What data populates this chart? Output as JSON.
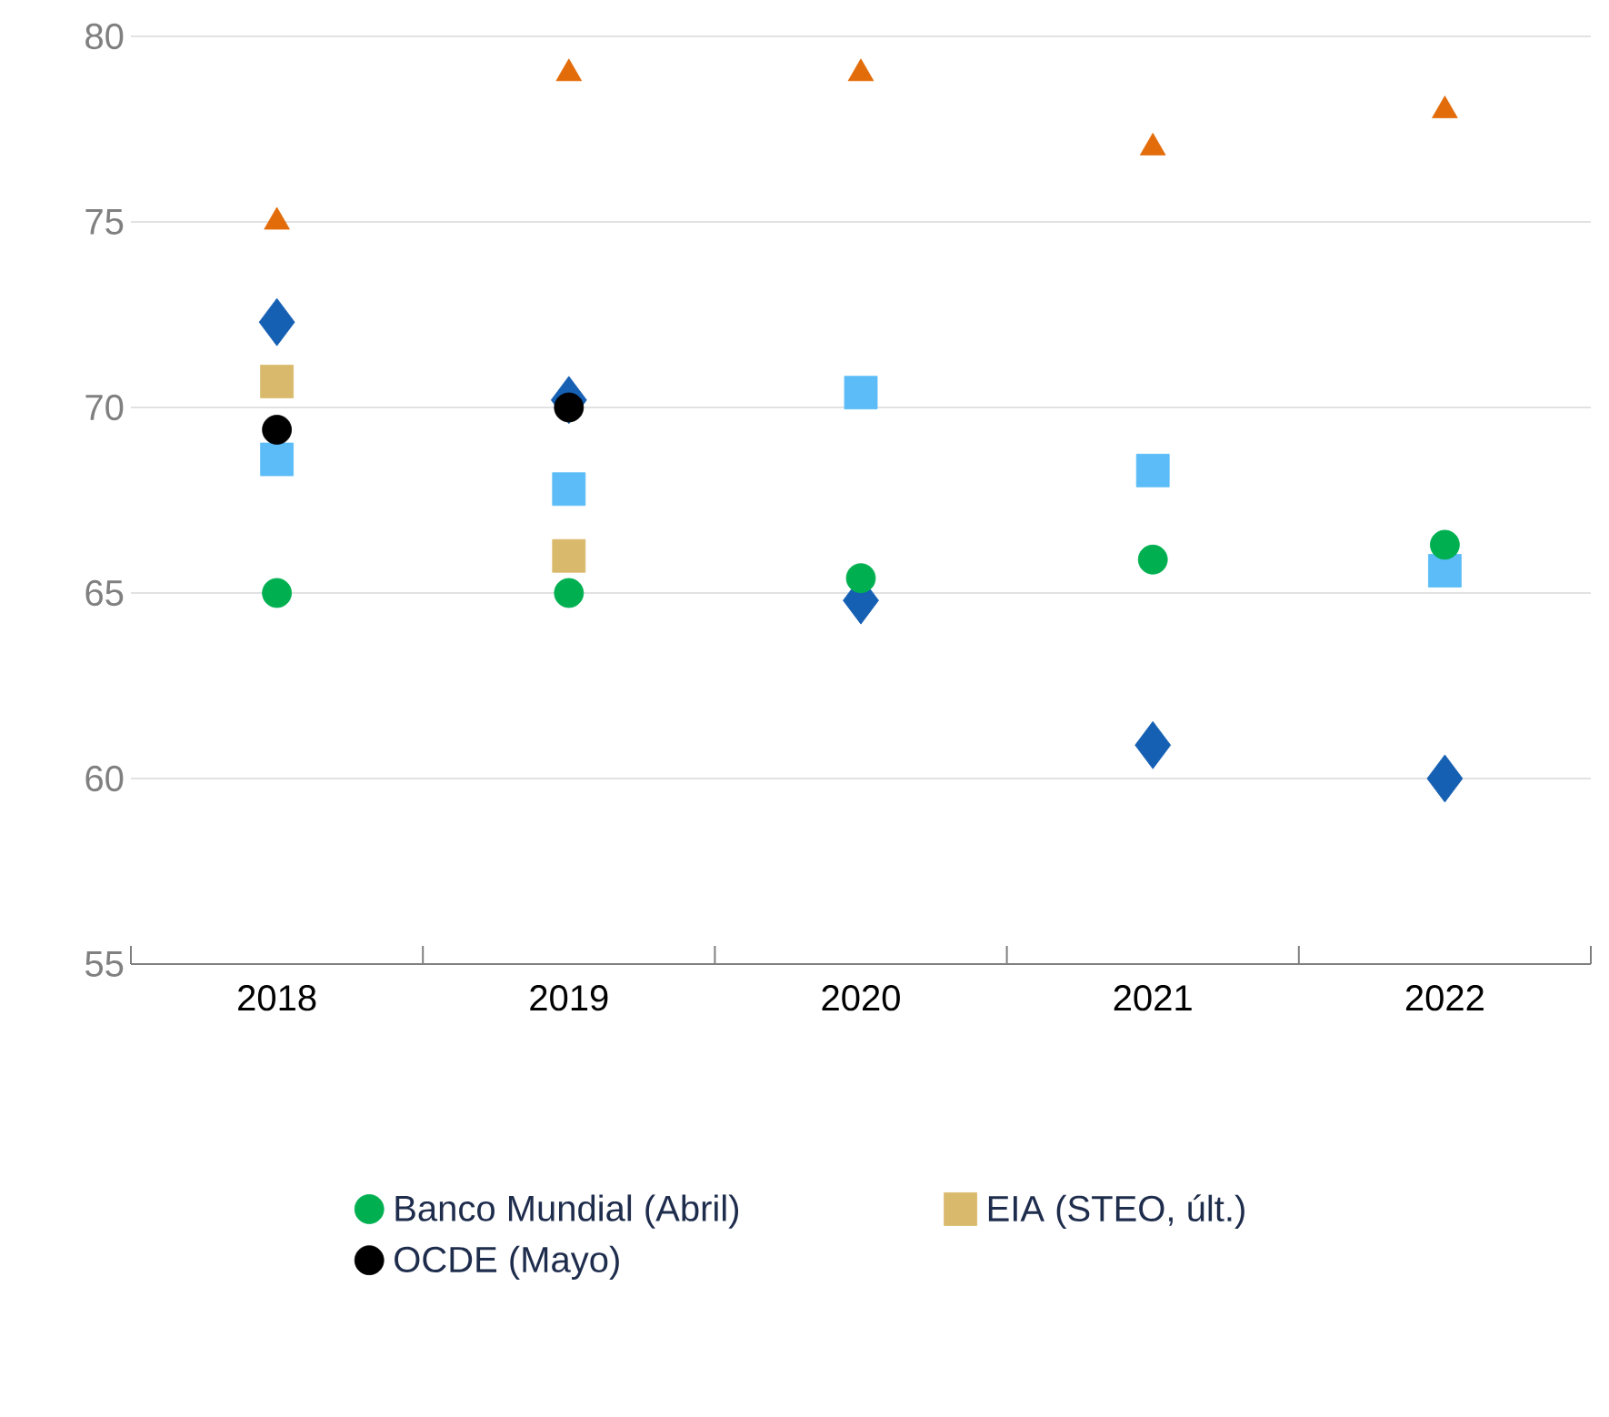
{
  "chart_data": {
    "type": "scatter",
    "categories": [
      "2018",
      "2019",
      "2020",
      "2021",
      "2022"
    ],
    "series": [
      {
        "color": "#1660b4",
        "marker": "diamond",
        "values": [
          72.3,
          70.2,
          64.8,
          60.9,
          60.0
        ]
      },
      {
        "color": "#5bbcf8",
        "marker": "square",
        "values": [
          68.6,
          67.8,
          70.4,
          68.3,
          65.6
        ]
      },
      {
        "color": "#e36c0a",
        "marker": "triangle",
        "values": [
          75,
          79,
          79,
          77,
          78
        ]
      },
      {
        "name": "Banco Mundial (Abril)",
        "color": "#00b050",
        "marker": "circle",
        "values": [
          65,
          65,
          65.4,
          65.9,
          66.3
        ]
      },
      {
        "name": "EIA (STEO, últ.)",
        "color": "#d9b96b",
        "marker": "square",
        "values": [
          70.7,
          66.0,
          null,
          null,
          null
        ]
      },
      {
        "name": "OCDE (Mayo)",
        "color": "#000000",
        "marker": "circle",
        "values": [
          69.4,
          70.0,
          null,
          null,
          null
        ]
      }
    ],
    "ylim": [
      55,
      80
    ],
    "yticks": [
      55,
      60,
      65,
      70,
      75,
      80
    ],
    "grid": "y",
    "legend": "bottom"
  }
}
